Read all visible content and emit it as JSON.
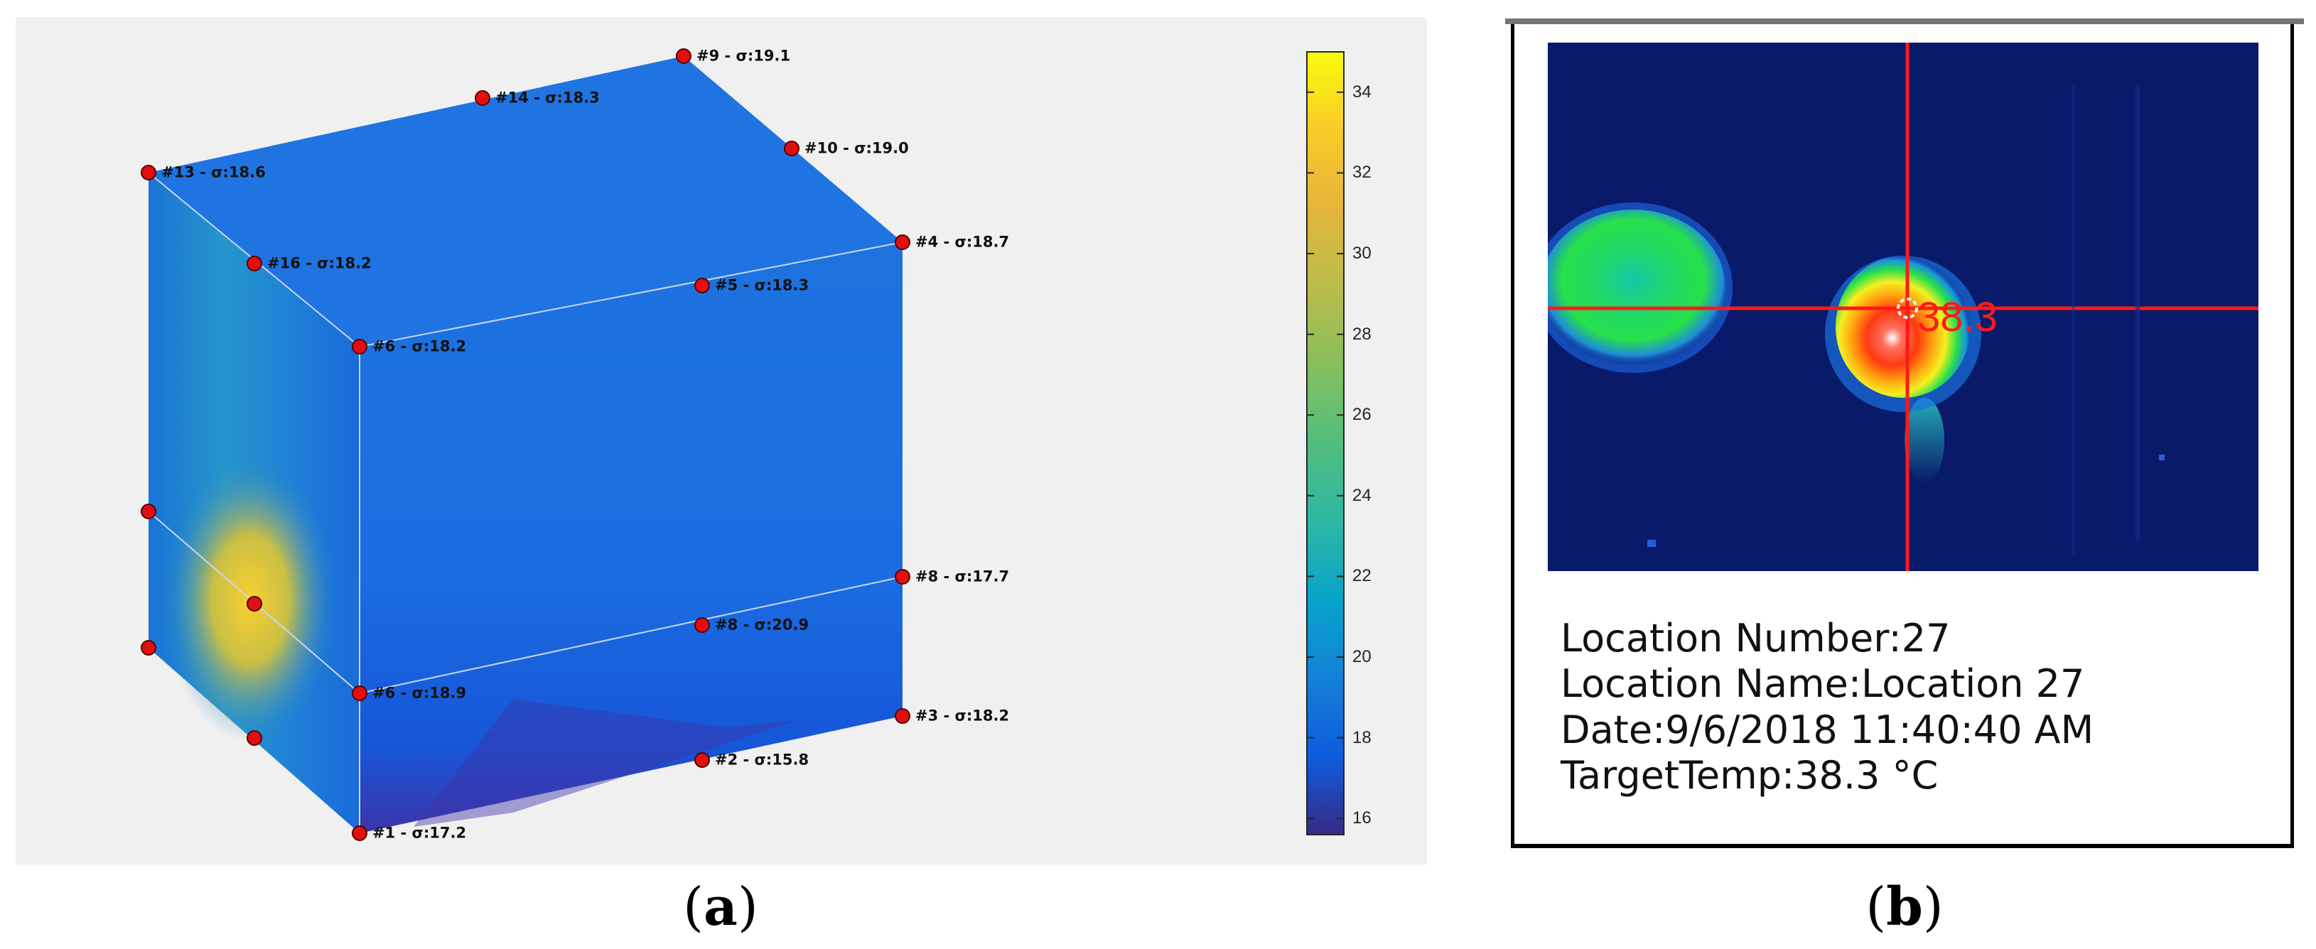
{
  "panels": {
    "a": {
      "label": "a"
    },
    "b": {
      "label": "b"
    }
  },
  "cube": {
    "nodes": [
      {
        "id": "#1",
        "label": "#1 - σ:17.2"
      },
      {
        "id": "#2",
        "label": "#2 - σ:15.8"
      },
      {
        "id": "#3",
        "label": "#3 - σ:18.2"
      },
      {
        "id": "#4",
        "label": "#4 - σ:18.7"
      },
      {
        "id": "#5",
        "label": "#5 - σ:18.3"
      },
      {
        "id": "#6",
        "label": "#6 - σ:18.2"
      },
      {
        "id": "#6b",
        "label": "#6 - σ:18.9"
      },
      {
        "id": "#8",
        "label": "#8 - σ:17.7"
      },
      {
        "id": "#8c",
        "label": "#8 - σ:20.9"
      },
      {
        "id": "#9",
        "label": "#9 - σ:19.1"
      },
      {
        "id": "#10",
        "label": "#10 - σ:19.0"
      },
      {
        "id": "#13",
        "label": "#13 - σ:18.6"
      },
      {
        "id": "#14",
        "label": "#14 - σ:18.3"
      },
      {
        "id": "#16",
        "label": "#16 - σ:18.2"
      }
    ],
    "colorbar": {
      "min": 15.6,
      "max": 35,
      "ticks": [
        "16",
        "18",
        "20",
        "22",
        "24",
        "26",
        "28",
        "30",
        "32",
        "34"
      ],
      "colormap": "parula"
    },
    "colors": {
      "body": "#1e6fdc",
      "hotspot": "#f5b22a",
      "node": "#e01010"
    }
  },
  "thermal": {
    "cursor_value": "38.3",
    "info": {
      "location_number": "Location Number:27",
      "location_name": "Location Name:Location 27",
      "date": "Date:9/6/2018 11:40:40 AM",
      "target_temp": "TargetTemp:38.3 °C"
    },
    "colors": {
      "crosshair": "#ff1a1a",
      "background": "#0a1a6a"
    }
  }
}
